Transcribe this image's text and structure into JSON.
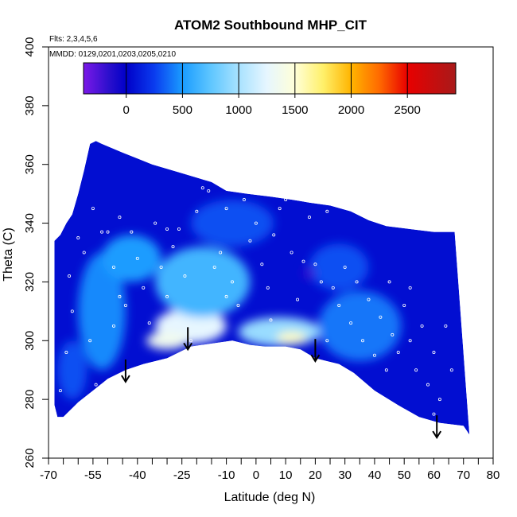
{
  "chart_data": {
    "type": "heatmap",
    "title": "ATOM2 Southbound MHP_CIT",
    "annotations": {
      "flights": "Flts: 2,3,4,5,6",
      "dates": "MMDD: 0129,0201,0203,0205,0210"
    },
    "xlabel": "Latitude (deg N)",
    "ylabel": "Theta (C)",
    "xlim": [
      -70,
      80
    ],
    "ylim": [
      260,
      400
    ],
    "x_ticks": [
      {
        "value": -70,
        "label": "-70"
      },
      {
        "value": -55,
        "label": "-55"
      },
      {
        "value": -40,
        "label": "-40"
      },
      {
        "value": -25,
        "label": "-25"
      },
      {
        "value": -10,
        "label": "-10"
      },
      {
        "value": 0,
        "label": "0"
      },
      {
        "value": 10,
        "label": "10"
      },
      {
        "value": 20,
        "label": "20"
      },
      {
        "value": 30,
        "label": "30"
      },
      {
        "value": 40,
        "label": "40"
      },
      {
        "value": 50,
        "label": "50"
      },
      {
        "value": 60,
        "label": "60"
      },
      {
        "value": 70,
        "label": "70"
      },
      {
        "value": 80,
        "label": "80"
      }
    ],
    "x_minor_ticks": [
      -65,
      -60,
      -50,
      -45,
      -35,
      -30,
      -20,
      -15,
      -5,
      5,
      15,
      25,
      35,
      45,
      55,
      65,
      75
    ],
    "y_ticks": [
      {
        "value": 260,
        "label": "260"
      },
      {
        "value": 280,
        "label": "280"
      },
      {
        "value": 300,
        "label": "300"
      },
      {
        "value": 320,
        "label": "320"
      },
      {
        "value": 340,
        "label": "340"
      },
      {
        "value": 360,
        "label": "360"
      },
      {
        "value": 380,
        "label": "380"
      },
      {
        "value": 400,
        "label": "400"
      }
    ],
    "colorbar": {
      "range": [
        -380,
        2930
      ],
      "ticks": [
        {
          "value": 0,
          "label": "0"
        },
        {
          "value": 500,
          "label": "500"
        },
        {
          "value": 1000,
          "label": "1000"
        },
        {
          "value": 1500,
          "label": "1500"
        },
        {
          "value": 2000,
          "label": "2000"
        },
        {
          "value": 2500,
          "label": "2500"
        }
      ],
      "colors": [
        {
          "value": -380,
          "color": "#7b19e8"
        },
        {
          "value": -150,
          "color": "#2a0fcc"
        },
        {
          "value": 0,
          "color": "#0000c8"
        },
        {
          "value": 250,
          "color": "#0a3cef"
        },
        {
          "value": 500,
          "color": "#1a9cff"
        },
        {
          "value": 750,
          "color": "#5ec6ff"
        },
        {
          "value": 1000,
          "color": "#a8e2ff"
        },
        {
          "value": 1250,
          "color": "#e6f6ff"
        },
        {
          "value": 1500,
          "color": "#ffffd8"
        },
        {
          "value": 1750,
          "color": "#fff06a"
        },
        {
          "value": 2000,
          "color": "#ffb400"
        },
        {
          "value": 2250,
          "color": "#ff6a00"
        },
        {
          "value": 2500,
          "color": "#e80000"
        },
        {
          "value": 2930,
          "color": "#a81a1a"
        }
      ]
    },
    "domain_boundary": {
      "top": [
        [
          -68,
          334
        ],
        [
          -66,
          336
        ],
        [
          -64,
          340
        ],
        [
          -62,
          343
        ],
        [
          -60,
          350
        ],
        [
          -58,
          358
        ],
        [
          -56,
          367
        ],
        [
          -54,
          368
        ],
        [
          -52,
          367
        ],
        [
          -45,
          364
        ],
        [
          -40,
          362
        ],
        [
          -35,
          360
        ],
        [
          -25,
          357
        ],
        [
          -15,
          354
        ],
        [
          -10,
          351
        ],
        [
          -3,
          350
        ],
        [
          5,
          349
        ],
        [
          12,
          348
        ],
        [
          18,
          347
        ],
        [
          25,
          346
        ],
        [
          32,
          344
        ],
        [
          38,
          341
        ],
        [
          44,
          339
        ],
        [
          52,
          338
        ],
        [
          60,
          337
        ],
        [
          65,
          337
        ],
        [
          67,
          337
        ]
      ],
      "bottom": [
        [
          72,
          268
        ],
        [
          70,
          271
        ],
        [
          62,
          272
        ],
        [
          55,
          274
        ],
        [
          48,
          278
        ],
        [
          40,
          283
        ],
        [
          33,
          289
        ],
        [
          28,
          292
        ],
        [
          24,
          293
        ],
        [
          20,
          294
        ],
        [
          15,
          297
        ],
        [
          10,
          298
        ],
        [
          3,
          298
        ],
        [
          -2,
          298.5
        ],
        [
          -8,
          300
        ],
        [
          -15,
          299
        ],
        [
          -22,
          298
        ],
        [
          -30,
          294
        ],
        [
          -38,
          292
        ],
        [
          -44,
          290
        ],
        [
          -50,
          287
        ],
        [
          -55,
          283
        ],
        [
          -60,
          279
        ],
        [
          -63,
          276
        ],
        [
          -65,
          274
        ],
        [
          -67,
          274
        ],
        [
          -68,
          278
        ]
      ]
    },
    "concentration_blobs": [
      {
        "lat": -22,
        "theta": 305,
        "rx": 12,
        "ry": 6,
        "value": 1250
      },
      {
        "lat": -30,
        "theta": 300,
        "rx": 7,
        "ry": 3,
        "value": 1350
      },
      {
        "lat": 8,
        "theta": 303,
        "rx": 14,
        "ry": 5,
        "value": 950
      },
      {
        "lat": 12,
        "theta": 301,
        "rx": 5,
        "ry": 2,
        "value": 1550
      },
      {
        "lat": -18,
        "theta": 320,
        "rx": 16,
        "ry": 12,
        "value": 650
      },
      {
        "lat": -52,
        "theta": 310,
        "rx": 8,
        "ry": 20,
        "value": 450
      },
      {
        "lat": -42,
        "theta": 328,
        "rx": 10,
        "ry": 8,
        "value": 500
      },
      {
        "lat": 35,
        "theta": 305,
        "rx": 14,
        "ry": 12,
        "value": 400
      },
      {
        "lat": -8,
        "theta": 340,
        "rx": 14,
        "ry": 8,
        "value": 300
      },
      {
        "lat": 28,
        "theta": 325,
        "rx": 10,
        "ry": 8,
        "value": 300
      },
      {
        "lat": -62,
        "theta": 290,
        "rx": 5,
        "ry": 10,
        "value": 300
      },
      {
        "lat": 18,
        "theta": 323,
        "rx": 2,
        "ry": 2,
        "value": -200
      }
    ],
    "arrows": [
      {
        "lat": -44,
        "theta": 286
      },
      {
        "lat": -23,
        "theta": 297
      },
      {
        "lat": 20,
        "theta": 293
      },
      {
        "lat": 61,
        "theta": 267
      }
    ],
    "sample_points": [
      [
        -63,
        322
      ],
      [
        -60,
        335
      ],
      [
        -58,
        330
      ],
      [
        -55,
        345
      ],
      [
        -52,
        337
      ],
      [
        -50,
        337
      ],
      [
        -48,
        325
      ],
      [
        -46,
        315
      ],
      [
        -44,
        312
      ],
      [
        -42,
        337
      ],
      [
        -40,
        328
      ],
      [
        -38,
        318
      ],
      [
        -36,
        306
      ],
      [
        -34,
        340
      ],
      [
        -32,
        325
      ],
      [
        -30,
        315
      ],
      [
        -28,
        332
      ],
      [
        -26,
        338
      ],
      [
        -24,
        322
      ],
      [
        -22,
        300
      ],
      [
        -20,
        344
      ],
      [
        -18,
        352
      ],
      [
        -16,
        351
      ],
      [
        -14,
        325
      ],
      [
        -12,
        330
      ],
      [
        -10,
        345
      ],
      [
        -8,
        320
      ],
      [
        -6,
        312
      ],
      [
        -4,
        348
      ],
      [
        -2,
        334
      ],
      [
        0,
        340
      ],
      [
        2,
        326
      ],
      [
        4,
        318
      ],
      [
        6,
        336
      ],
      [
        8,
        345
      ],
      [
        10,
        348
      ],
      [
        12,
        330
      ],
      [
        14,
        314
      ],
      [
        16,
        327
      ],
      [
        18,
        342
      ],
      [
        20,
        326
      ],
      [
        22,
        320
      ],
      [
        24,
        344
      ],
      [
        26,
        318
      ],
      [
        28,
        312
      ],
      [
        30,
        325
      ],
      [
        32,
        306
      ],
      [
        34,
        320
      ],
      [
        36,
        300
      ],
      [
        38,
        314
      ],
      [
        40,
        295
      ],
      [
        42,
        308
      ],
      [
        44,
        290
      ],
      [
        46,
        302
      ],
      [
        48,
        296
      ],
      [
        50,
        312
      ],
      [
        52,
        300
      ],
      [
        54,
        290
      ],
      [
        56,
        305
      ],
      [
        58,
        285
      ],
      [
        60,
        296
      ],
      [
        62,
        280
      ],
      [
        64,
        305
      ],
      [
        66,
        290
      ],
      [
        -62,
        310
      ],
      [
        -56,
        300
      ],
      [
        -54,
        285
      ],
      [
        -48,
        305
      ],
      [
        -46,
        342
      ],
      [
        -30,
        338
      ],
      [
        -10,
        315
      ],
      [
        5,
        307
      ],
      [
        24,
        300
      ],
      [
        45,
        320
      ],
      [
        52,
        318
      ],
      [
        60,
        275
      ],
      [
        -66,
        283
      ],
      [
        -64,
        296
      ]
    ]
  }
}
